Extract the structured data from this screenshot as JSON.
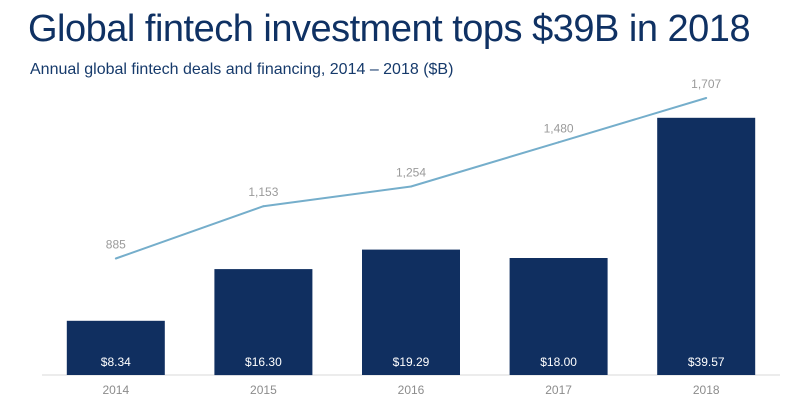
{
  "header": {
    "title": "Global fintech investment tops $39B in 2018",
    "subtitle": "Annual global fintech deals and financing, 2014 – 2018 ($B)"
  },
  "chart_data": {
    "type": "bar",
    "categories": [
      "2014",
      "2015",
      "2016",
      "2017",
      "2018"
    ],
    "series": [
      {
        "type": "bar",
        "values": [
          8.34,
          16.3,
          19.29,
          18.0,
          39.57
        ],
        "labels": [
          "$8.34",
          "$16.30",
          "$19.29",
          "$18.00",
          "$39.57"
        ],
        "color": "#102f60"
      },
      {
        "type": "line",
        "values": [
          885,
          1153,
          1254,
          1480,
          1707
        ],
        "labels": [
          "885",
          "1,153",
          "1,254",
          "1,480",
          "1,707"
        ],
        "color": "#75aecb"
      }
    ],
    "ylim": [
      0,
      40
    ],
    "secondary_ylim": [
      0,
      1800
    ],
    "grid": false,
    "legend": "none"
  }
}
